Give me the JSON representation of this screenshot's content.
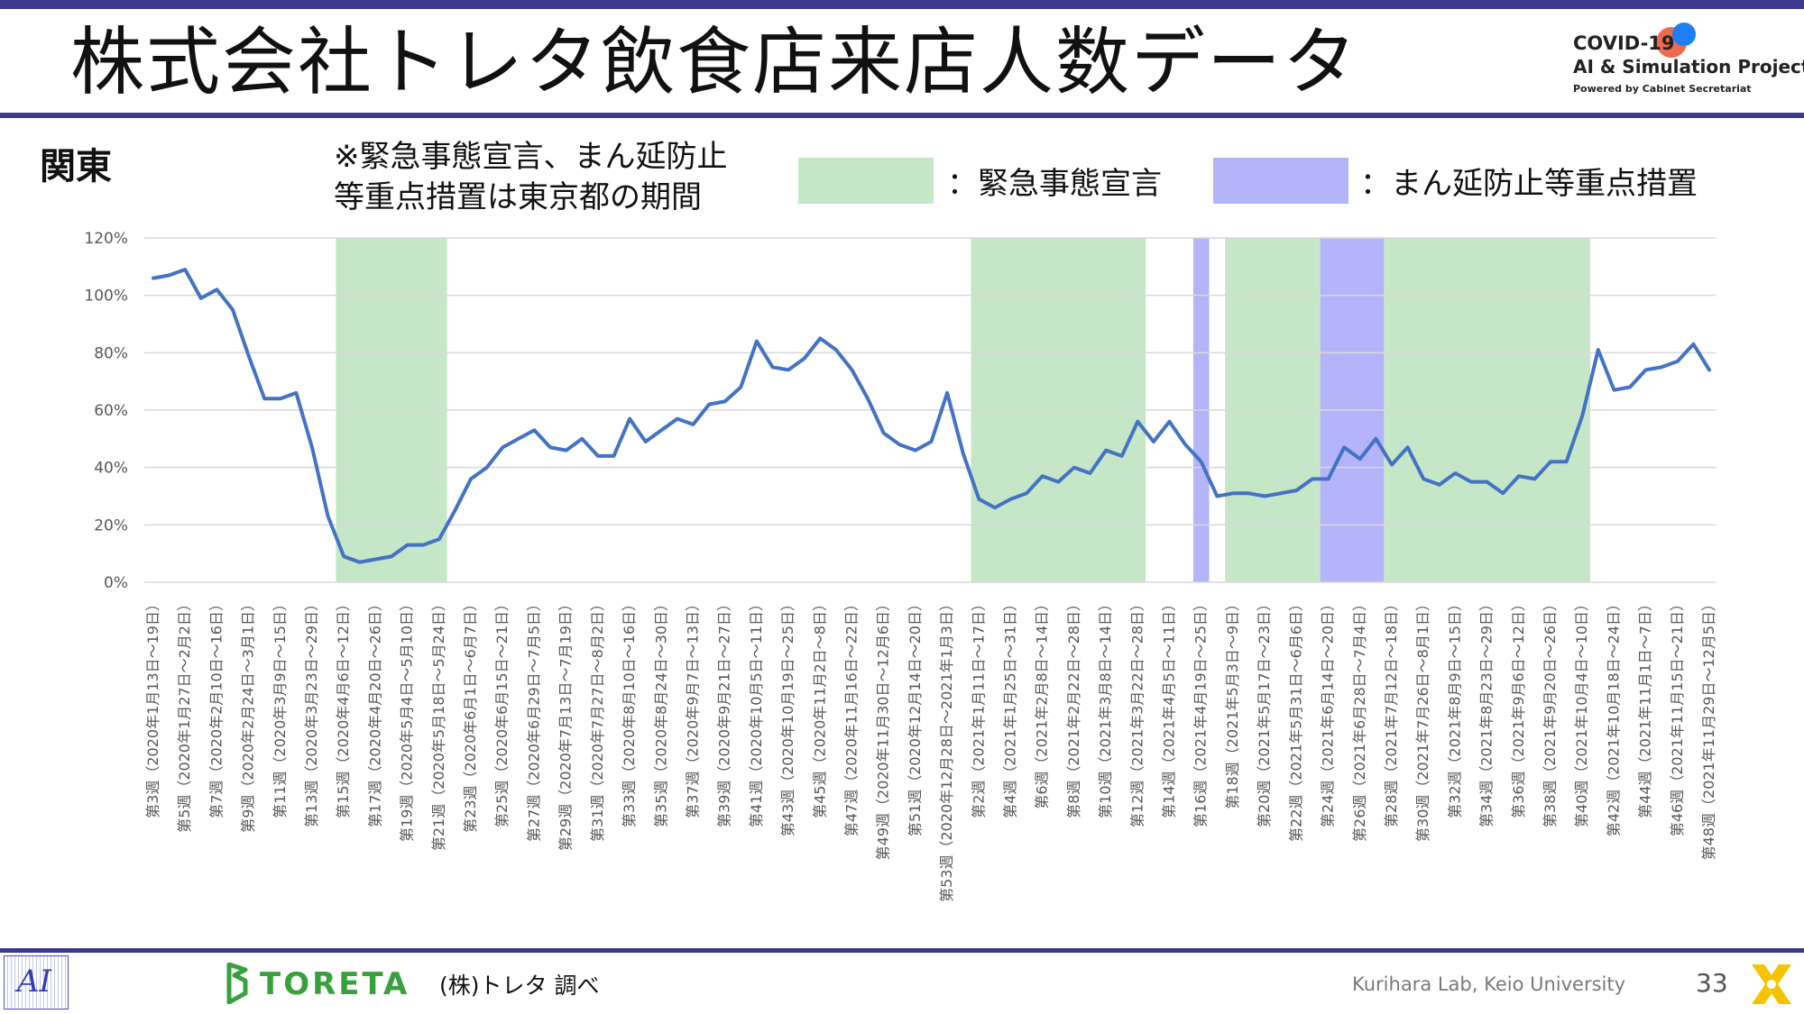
{
  "header": {
    "title": "株式会社トレタ飲食店来店人数データ",
    "logo_line1": "COVID-19",
    "logo_line2": "AI & Simulation Project",
    "logo_line3": "Powered by Cabinet Secretariat"
  },
  "region_label": "関東",
  "note_line1": "※緊急事態宣言、まん延防止",
  "note_line2": "等重点措置は東京都の期間",
  "legend": {
    "emergency_label": "：緊急事態宣言",
    "emergency_color": "#c5e7c8",
    "prevention_label": "：まん延防止等重点措置",
    "prevention_color": "#b4b4fb"
  },
  "chart_data": {
    "type": "line",
    "ylim": [
      0,
      120
    ],
    "yticks": [
      "0%",
      "20%",
      "40%",
      "60%",
      "80%",
      "100%",
      "120%"
    ],
    "grid": true,
    "line_color": "#4472c4",
    "series": [
      {
        "values": [
          106,
          107,
          109,
          99,
          102,
          95,
          79,
          64,
          64,
          66,
          47,
          23,
          9,
          7,
          8,
          9,
          13,
          13,
          15,
          25,
          36,
          40,
          47,
          50,
          53,
          47,
          46,
          50,
          44,
          44,
          57,
          49,
          53,
          57,
          55,
          62,
          63,
          68,
          84,
          75,
          74,
          78,
          85,
          81,
          74,
          64,
          52,
          48,
          46,
          49,
          66,
          45,
          29,
          26,
          29,
          31,
          37,
          35,
          40,
          38,
          46,
          44,
          56,
          49,
          56,
          48,
          42,
          30,
          31,
          31,
          30,
          31,
          32,
          36,
          36,
          47,
          43,
          50,
          41,
          47,
          36,
          34,
          38,
          35,
          35,
          31,
          37,
          36,
          42,
          42,
          58,
          81,
          67,
          68,
          74,
          75,
          77,
          83,
          74
        ]
      }
    ],
    "x_labels": [
      "第3週（2020年1月13日～19日）",
      "第5週（2020年1月27日～2月2日）",
      "第7週（2020年2月10日～16日）",
      "第9週（2020年2月24日～3月1日）",
      "第11週（2020年3月9日～15日）",
      "第13週（2020年3月23日～29日）",
      "第15週（2020年4月6日～12日）",
      "第17週（2020年4月20日～26日）",
      "第19週（2020年5月4日～5月10日）",
      "第21週（2020年5月18日～5月24日）",
      "第23週（2020年6月1日～6月7日）",
      "第25週（2020年6月15日～21日）",
      "第27週（2020年6月29日～7月5日）",
      "第29週（2020年7月13日～7月19日）",
      "第31週（2020年7月27日～8月2日）",
      "第33週（2020年8月10日～16日）",
      "第35週（2020年8月24日～30日）",
      "第37週（2020年9月7日～13日）",
      "第39週（2020年9月21日～27日）",
      "第41週（2020年10月5日～11日）",
      "第43週（2020年10月19日～25日）",
      "第45週（2020年11月2日～8日）",
      "第47週（2020年11月16日～22日）",
      "第49週（2020年11月30日～12月6日）",
      "第51週（2020年12月14日～20日）",
      "第53週（2020年12月28日～2021年1月3日）",
      "第2週（2021年1月11日～17日）",
      "第4週（2021年1月25日～31日）",
      "第6週（2021年2月8日～14日）",
      "第8週（2021年2月22日～28日）",
      "第10週（2021年3月8日～14日）",
      "第12週（2021年3月22日～28日）",
      "第14週（2021年4月5日～11日）",
      "第16週（2021年4月19日～25日）",
      "第18週（2021年5月3日～9日）",
      "第20週（2021年5月17日～23日）",
      "第22週（2021年5月31日～6月6日）",
      "第24週（2021年6月14日～20日）",
      "第26週（2021年6月28日～7月4日）",
      "第28週（2021年7月12日～18日）",
      "第30週（2021年7月26日～8月1日）",
      "第32週（2021年8月9日～15日）",
      "第34週（2021年8月23日～29日）",
      "第36週（2021年9月6日～12日）",
      "第38週（2021年9月20日～26日）",
      "第40週（2021年10月4日～10日）",
      "第42週（2021年10月18日～24日）",
      "第44週（2021年11月1日～7日）",
      "第46週（2021年11月15日～21日）",
      "第48週（2021年11月29日～12月5日）"
    ],
    "shaded_periods": [
      {
        "kind": "emergency",
        "from_label": "第15週（2020年4月6日～12日）",
        "to_label": "第21週（2020年5月18日～5月24日）"
      },
      {
        "kind": "emergency",
        "from_label": "第2週（2021年1月11日～17日）",
        "to_label": "第12週（2021年3月22日～28日）"
      },
      {
        "kind": "prevention",
        "from_label": "第16週（2021年4月19日～25日）",
        "to_label": "第16週（2021年4月19日～25日）"
      },
      {
        "kind": "emergency",
        "from_label": "第18週（2021年5月3日～9日）",
        "to_label": "第24週（2021年6月14日～20日）"
      },
      {
        "kind": "prevention",
        "from_label": "第24週（2021年6月14日～20日）",
        "to_label": "第28週（2021年7月12日～18日）"
      },
      {
        "kind": "emergency",
        "from_label": "第28週（2021年7月12日～18日）",
        "to_label": "第40週（2021年10月4日～10日）"
      }
    ]
  },
  "footer": {
    "lab_logo_text": "AI",
    "toreta_brand": "TORETA",
    "source": "(株)トレタ 調べ",
    "lab_name": "Kurihara Lab, Keio University",
    "page_number": "33"
  }
}
